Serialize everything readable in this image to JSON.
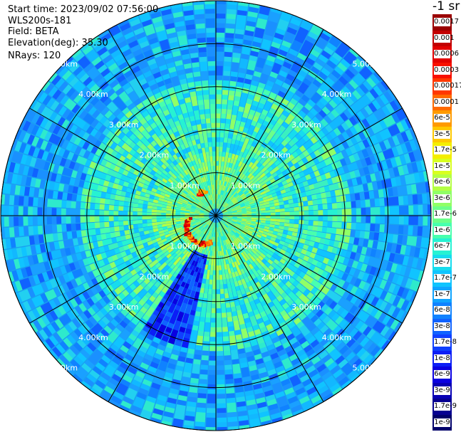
{
  "info": {
    "start_time": "Start time: 2023/09/02 07:56:00",
    "site": "WLS200s-181",
    "field": "Field: BETA",
    "elevation": "Elevation(deg): 35.30",
    "nrays": "NRays: 120"
  },
  "colorbar": {
    "title": "-1 sr",
    "levels": [
      {
        "label": "0.0017",
        "color": "#9a0000"
      },
      {
        "label": "0.001",
        "color": "#c20000"
      },
      {
        "label": "0.0006",
        "color": "#e20000"
      },
      {
        "label": "0.0003",
        "color": "#f81000"
      },
      {
        "label": "0.00017",
        "color": "#ff3800"
      },
      {
        "label": "0.0001",
        "color": "#ff6a00"
      },
      {
        "label": "6e-5",
        "color": "#ff9a00"
      },
      {
        "label": "3e-5",
        "color": "#ffc800"
      },
      {
        "label": "1.7e-5",
        "color": "#f4ee00"
      },
      {
        "label": "1e-5",
        "color": "#d8ff20"
      },
      {
        "label": "6e-6",
        "color": "#b4ff44"
      },
      {
        "label": "3e-6",
        "color": "#90ff66"
      },
      {
        "label": "1.7e-6",
        "color": "#6cff8a"
      },
      {
        "label": "1e-6",
        "color": "#48ffae"
      },
      {
        "label": "6e-7",
        "color": "#26f2d2"
      },
      {
        "label": "3e-7",
        "color": "#16dcee"
      },
      {
        "label": "1.7e-7",
        "color": "#10c4ff"
      },
      {
        "label": "1e-7",
        "color": "#10a4ff"
      },
      {
        "label": "6e-8",
        "color": "#1082ff"
      },
      {
        "label": "3e-8",
        "color": "#1062ff"
      },
      {
        "label": "1.7e-8",
        "color": "#1040ff"
      },
      {
        "label": "1e-8",
        "color": "#0c1ef6"
      },
      {
        "label": "6e-9",
        "color": "#0a00e0"
      },
      {
        "label": "3e-9",
        "color": "#0800b4"
      },
      {
        "label": "1.7e-9",
        "color": "#060090"
      },
      {
        "label": "1e-9",
        "color": "#00006a"
      }
    ]
  },
  "ppi": {
    "range_labels": [
      "1.00km",
      "2.00km",
      "3.00km",
      "4.00km",
      "5.00km"
    ],
    "range_rings_km": [
      1,
      2,
      3,
      4,
      5
    ],
    "max_range_km": 5.0,
    "ray_count": 120
  }
}
